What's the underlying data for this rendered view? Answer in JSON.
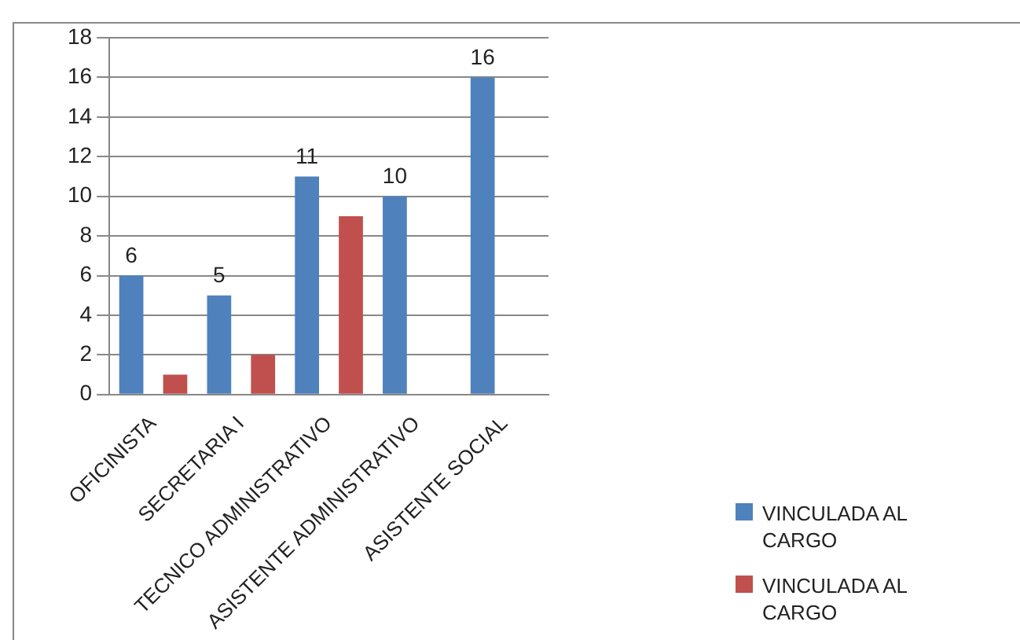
{
  "chart_data": {
    "type": "bar",
    "categories": [
      "OFICINISTA",
      "SECRETARIA I",
      "TECNICO ADMINISTRATIVO",
      "ASISTENTE ADMINISTRATIVO",
      "ASISTENTE SOCIAL"
    ],
    "series": [
      {
        "name": "VINCULADA AL CARGO",
        "color": "#4f81bd",
        "values": [
          6,
          5,
          11,
          10,
          16
        ],
        "value_labels": [
          "6",
          "5",
          "11",
          "10",
          "16"
        ]
      },
      {
        "name": "VINCULADA AL CARGO",
        "color": "#c0504d",
        "values": [
          1,
          2,
          9,
          null,
          null
        ]
      }
    ],
    "ylim": [
      0,
      18
    ],
    "yticks": [
      0,
      2,
      4,
      6,
      8,
      10,
      12,
      14,
      16,
      18
    ],
    "grid": "y",
    "legend": "right"
  }
}
